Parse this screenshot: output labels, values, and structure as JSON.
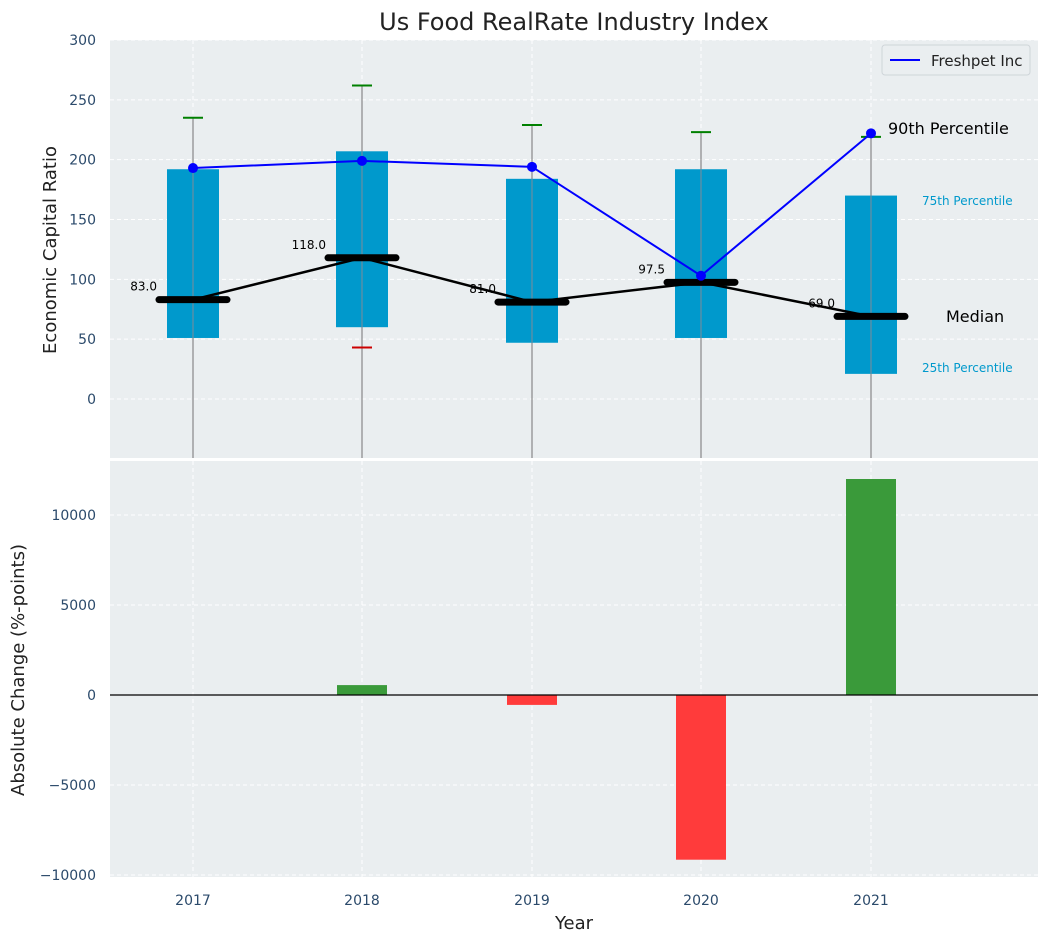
{
  "chart_data": [
    {
      "type": "box",
      "title": "Us Food RealRate Industry Index",
      "ylabel": "Economic Capital Ratio",
      "xlabel": "",
      "ylim": [
        -45,
        300
      ],
      "yticks": [
        0,
        50,
        100,
        150,
        200,
        250,
        300
      ],
      "grid": true,
      "legend": {
        "position": "top-right",
        "entries": [
          "Freshpet Inc"
        ]
      },
      "categories": [
        "2017",
        "2018",
        "2019",
        "2020",
        "2021"
      ],
      "percentile_25": [
        51,
        60,
        47,
        51,
        21
      ],
      "percentile_75": [
        192,
        207,
        184,
        192,
        170
      ],
      "median": [
        83.0,
        118.0,
        81.0,
        97.5,
        69.0
      ],
      "median_labels": [
        "83.0",
        "118.0",
        "81.0",
        "97.5",
        "69.0"
      ],
      "percentile_90": [
        235,
        262,
        229,
        223,
        219
      ],
      "percentile_10": [
        null,
        43,
        null,
        null,
        null
      ],
      "series": [
        {
          "name": "Freshpet Inc",
          "values": [
            193,
            199,
            194,
            103,
            222
          ]
        }
      ],
      "annotations": {
        "p90": "90th Percentile",
        "p75": "75th Percentile",
        "median": "Median",
        "p25": "25th Percentile"
      }
    },
    {
      "type": "bar",
      "title": "",
      "xlabel": "Year",
      "ylabel": "Absolute Change (%-points)",
      "ylim": [
        -10000,
        13000
      ],
      "yticks": [
        -10000,
        -5000,
        0,
        5000,
        10000
      ],
      "ytick_labels": [
        "−10000",
        "−5000",
        "0",
        "5000",
        "10000"
      ],
      "grid": true,
      "categories": [
        "2017",
        "2018",
        "2019",
        "2020",
        "2021"
      ],
      "values": [
        0,
        550,
        -550,
        -9150,
        12000
      ]
    }
  ],
  "colors": {
    "box": "#0099cc",
    "company_line": "#0000ff",
    "median": "#000000",
    "whisker_top": "#008000",
    "whisker_bottom": "#cc0000",
    "positive_bar": "#3a9a3a",
    "negative_bar": "#ff3b3b",
    "panel_bg": "#eaeef0",
    "annotation_blue": "#0099cc"
  }
}
